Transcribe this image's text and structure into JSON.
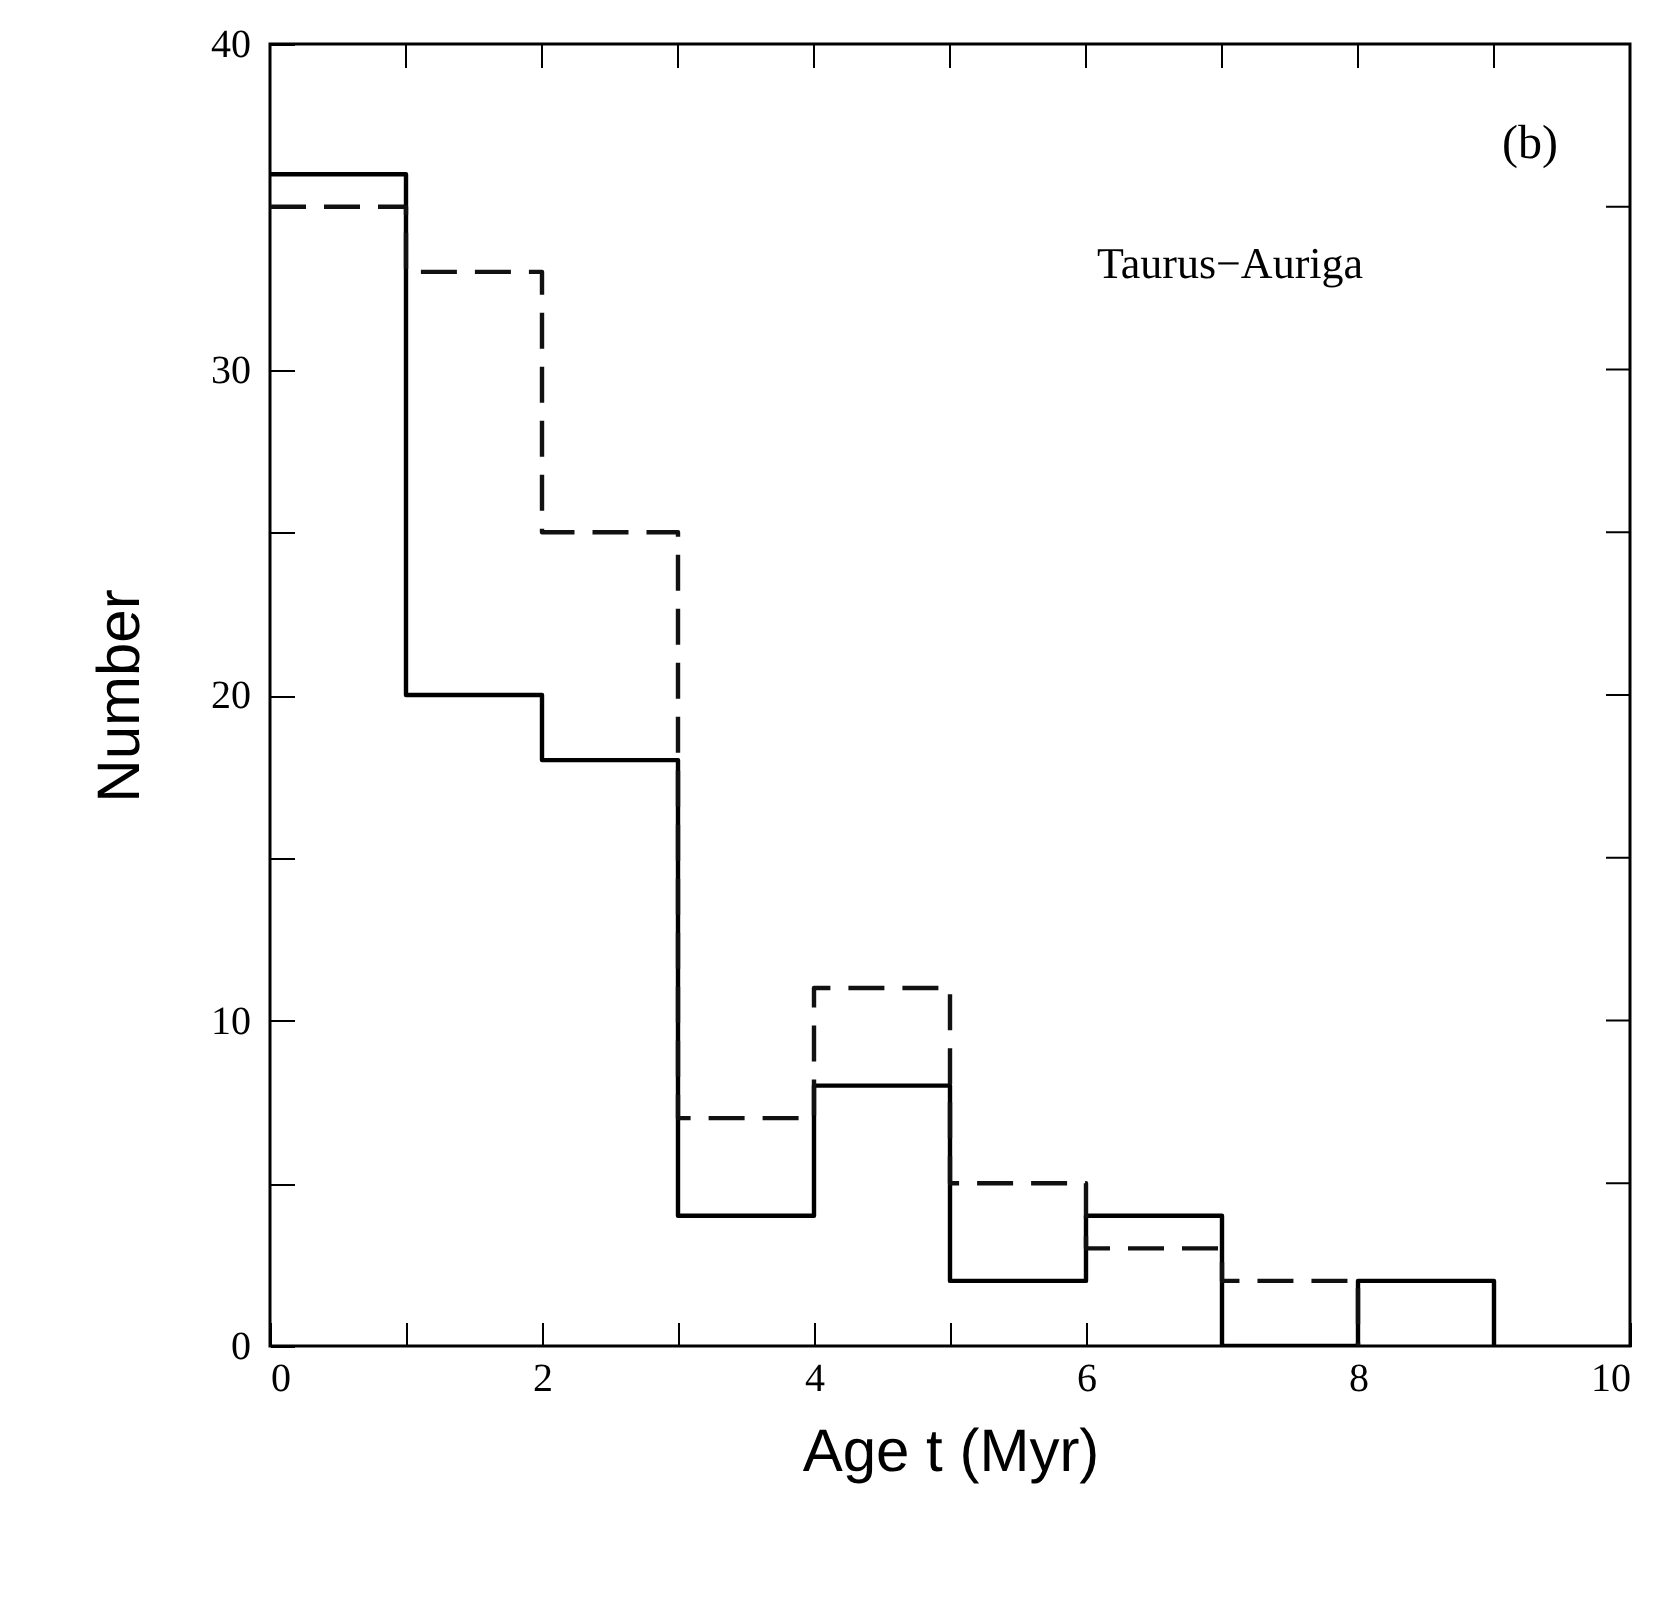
{
  "chart_data": {
    "type": "histogram",
    "xlabel": "Age t (Myr)",
    "ylabel": "Number",
    "annotations": [
      "(b)",
      "Taurus−Auriga"
    ],
    "bins": [
      0,
      1,
      2,
      3,
      4,
      5,
      6,
      7,
      8,
      9
    ],
    "series": [
      {
        "color": "#000000",
        "line_style": "solid",
        "values": [
          36,
          20,
          18,
          4,
          8,
          2,
          4,
          0,
          2
        ]
      },
      {
        "color": "#111111",
        "line_style": "dashed",
        "bins": [
          0,
          1,
          2,
          3,
          4,
          5,
          6,
          7,
          8
        ],
        "values": [
          35,
          33,
          25,
          7,
          11,
          5,
          3,
          2
        ]
      }
    ],
    "xlim": [
      0,
      10
    ],
    "ylim": [
      0,
      40
    ],
    "xticks": [
      0,
      {
        "value": 1,
        "label": null
      },
      2,
      {
        "value": 3,
        "label": null
      },
      4,
      {
        "value": 5,
        "label": null
      },
      6,
      {
        "value": 7,
        "label": null
      },
      8,
      {
        "value": 9,
        "label": null
      },
      10
    ],
    "yticks": [
      0,
      {
        "value": 5,
        "label": null
      },
      10,
      {
        "value": 15,
        "label": null
      },
      20,
      {
        "value": 25,
        "label": null
      },
      30,
      {
        "value": 35,
        "label": null
      },
      40
    ],
    "grid": false
  }
}
